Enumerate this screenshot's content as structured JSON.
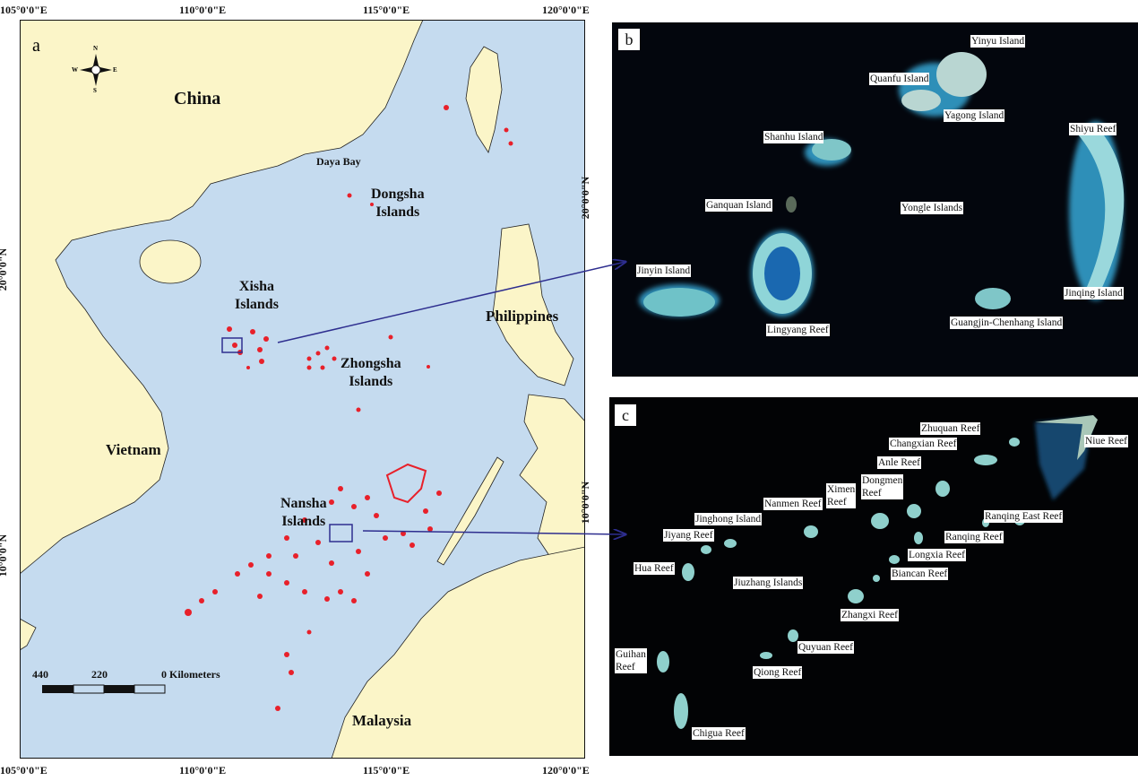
{
  "map_a": {
    "panel_letter": "a",
    "lon_ticks": [
      "105°0'0\"E",
      "110°0'0\"E",
      "115°0'0\"E",
      "120°0'0\"E"
    ],
    "lat_ticks": [
      "20°0'0\"N",
      "10°0'0\"N"
    ],
    "places": {
      "china": "China",
      "daya_bay": "Daya Bay",
      "dongsha": "Dongsha\nIslands",
      "xisha": "Xisha\nIslands",
      "zhongsha": "Zhongsha\nIslands",
      "philippines": "Philippines",
      "vietnam": "Vietnam",
      "nansha": "Nansha\nIslands",
      "malaysia": "Malaysia"
    },
    "compass": {
      "n": "N",
      "s": "S",
      "e": "E",
      "w": "W"
    },
    "scale": {
      "labels": [
        "440",
        "220",
        "0 Kilometers"
      ]
    },
    "colors": {
      "land": "#fbf5c8",
      "sea": "#c5dbef",
      "reef": "#e8202a",
      "arrow": "#2e2e8f"
    }
  },
  "panel_b": {
    "panel_letter": "b",
    "lat_tick": "20°0'0\"N",
    "labels": [
      "Yinyu Island",
      "Quanfu Island",
      "Yagong Island",
      "Shiyu Reef",
      "Shanhu Island",
      "Ganquan  Island",
      "Yongle  Islands",
      "Jinyin  Island",
      "Lingyang Reef",
      "Jinqing  Island",
      "Guangjin-Chenhang Island"
    ]
  },
  "panel_c": {
    "panel_letter": "c",
    "lat_tick": "10°0'0\"N",
    "labels": [
      "Zhuquan Reef",
      "Niue Reef",
      "Changxian Reef",
      "Anle Reef",
      "Dongmen\nReef",
      "Ximen\nReef",
      "Nanmen Reef",
      "Jinghong Island",
      "Jiyang Reef",
      "Ranqing East Reef",
      "Ranqing Reef",
      "Longxia Reef",
      "Biancan Reef",
      "Hua Reef",
      "Jiuzhang  Islands",
      "Zhangxi Reef",
      "Quyuan Reef",
      "Qiong Reef",
      "Guihan\nReef",
      "Chigua  Reef"
    ]
  }
}
